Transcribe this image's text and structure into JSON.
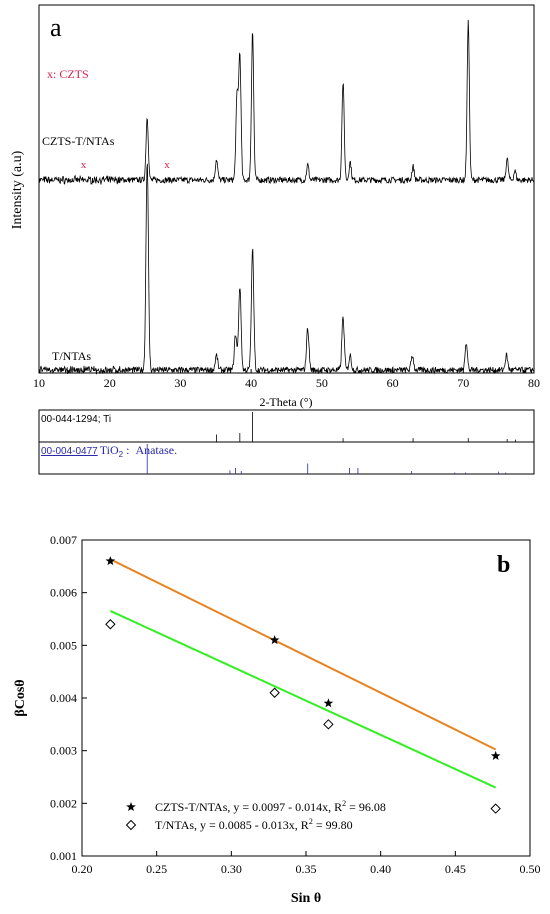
{
  "chart_data": [
    {
      "type": "line",
      "panel_letter": "a",
      "xlabel": "2-Theta (°)",
      "ylabel": "Intensity (a.u)",
      "xlim": [
        10,
        80
      ],
      "xticks": [
        10,
        20,
        30,
        40,
        50,
        60,
        70,
        80
      ],
      "legend_note": "x: CZTS",
      "marker_char": "x",
      "series": [
        {
          "name": "CZTS-T/NTAs",
          "color": "#000000",
          "peaks": [
            [
              25.3,
              0.42
            ],
            [
              35.1,
              0.14
            ],
            [
              38.0,
              0.55
            ],
            [
              38.4,
              0.83
            ],
            [
              40.2,
              1.0
            ],
            [
              48.0,
              0.1
            ],
            [
              53.0,
              0.65
            ],
            [
              54.0,
              0.12
            ],
            [
              62.9,
              0.09
            ],
            [
              70.7,
              1.05
            ],
            [
              76.2,
              0.14
            ],
            [
              77.3,
              0.06
            ]
          ],
          "czts_markers": [
            16.3,
            28.1
          ]
        },
        {
          "name": "T/NTAs",
          "color": "#000000",
          "peaks": [
            [
              25.3,
              1.0
            ],
            [
              35.1,
              0.07
            ],
            [
              37.8,
              0.17
            ],
            [
              38.4,
              0.4
            ],
            [
              40.2,
              0.58
            ],
            [
              48.0,
              0.2
            ],
            [
              53.0,
              0.25
            ],
            [
              54.0,
              0.07
            ],
            [
              62.8,
              0.07
            ],
            [
              70.4,
              0.13
            ],
            [
              76.1,
              0.07
            ]
          ]
        }
      ],
      "reference_patterns": [
        {
          "code": "00-044-1294",
          "label": "; Ti",
          "color": "#000000",
          "lines": [
            [
              35.1,
              0.25
            ],
            [
              38.4,
              0.3
            ],
            [
              40.2,
              1.0
            ],
            [
              53.0,
              0.13
            ],
            [
              62.9,
              0.13
            ],
            [
              70.7,
              0.13
            ],
            [
              76.2,
              0.1
            ],
            [
              77.4,
              0.08
            ]
          ]
        },
        {
          "code": "00-004-0477",
          "formula": "TiO",
          "formula_sub": "2",
          "label_sep": " :",
          "label": "Anatase.",
          "color": "#2a2aa8",
          "lines": [
            [
              25.3,
              1.0
            ],
            [
              37.0,
              0.12
            ],
            [
              37.8,
              0.2
            ],
            [
              38.6,
              0.1
            ],
            [
              48.0,
              0.35
            ],
            [
              53.9,
              0.2
            ],
            [
              55.1,
              0.2
            ],
            [
              62.7,
              0.1
            ],
            [
              68.8,
              0.05
            ],
            [
              70.3,
              0.05
            ],
            [
              75.0,
              0.08
            ],
            [
              76.0,
              0.05
            ]
          ]
        }
      ]
    },
    {
      "type": "scatter",
      "panel_letter": "b",
      "xlabel": "Sin θ",
      "ylabel": "βCosθ",
      "xlim": [
        0.2,
        0.5
      ],
      "ylim": [
        0.001,
        0.007
      ],
      "xticks": [
        0.2,
        0.25,
        0.3,
        0.35,
        0.4,
        0.45,
        0.5
      ],
      "yticks": [
        0.001,
        0.002,
        0.003,
        0.004,
        0.005,
        0.006,
        0.007
      ],
      "legend_placement": "bottom-left",
      "series": [
        {
          "name": "CZTS-T/NTAs, y = 0.0097 - 0.014x, R",
          "name_sup": "2",
          "name_tail": " = 96.08",
          "marker": "star",
          "line_color": "#e8821e",
          "x": [
            0.219,
            0.329,
            0.365,
            0.477
          ],
          "y": [
            0.0066,
            0.0051,
            0.0039,
            0.0029
          ],
          "fit": {
            "intercept": 0.0097,
            "slope": -0.014,
            "x_range": [
              0.219,
              0.477
            ]
          }
        },
        {
          "name": "T/NTAs, y = 0.0085 - 0.013x, R",
          "name_sup": "2",
          "name_tail": " = 99.80",
          "marker": "diamond",
          "line_color": "#33ee22",
          "x": [
            0.219,
            0.329,
            0.365,
            0.477
          ],
          "y": [
            0.0054,
            0.0041,
            0.0035,
            0.0019
          ],
          "fit": {
            "intercept": 0.0085,
            "slope": -0.013,
            "x_range": [
              0.219,
              0.477
            ]
          }
        }
      ]
    }
  ]
}
